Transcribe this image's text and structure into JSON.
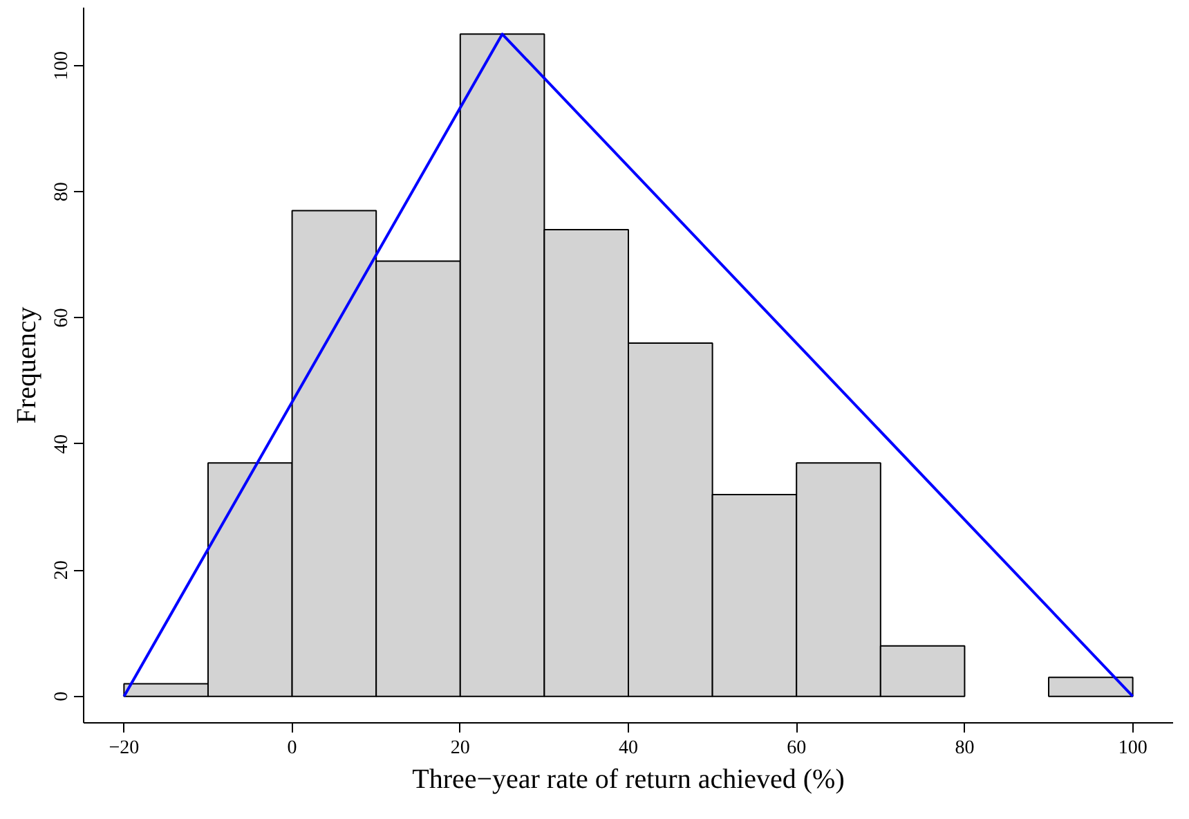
{
  "chart_data": {
    "type": "histogram",
    "xlabel": "Three−year rate of return achieved (%)",
    "ylabel": "Frequency",
    "bins": [
      -20,
      -10,
      0,
      10,
      20,
      30,
      40,
      50,
      60,
      70,
      80,
      90,
      100
    ],
    "values": [
      2,
      37,
      77,
      69,
      105,
      74,
      56,
      32,
      37,
      8,
      0,
      3
    ],
    "color": "#d3d3d3",
    "series": [
      {
        "type": "line",
        "x": [
          -20,
          25,
          100
        ],
        "values": [
          0,
          105,
          0
        ],
        "color": "#0000ff"
      }
    ],
    "xlim": [
      -24.8,
      104.8
    ],
    "ylim": [
      -4.2,
      109.2
    ],
    "xticks": [
      -20,
      0,
      20,
      40,
      60,
      80,
      100
    ],
    "yticks": [
      0,
      20,
      40,
      60,
      80,
      100
    ],
    "grid": false
  }
}
